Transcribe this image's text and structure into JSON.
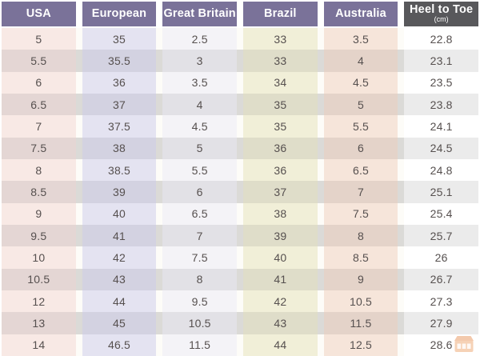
{
  "chart_data": {
    "type": "table",
    "columns": [
      {
        "label": "USA"
      },
      {
        "label": "European"
      },
      {
        "label": "Great Britain"
      },
      {
        "label": "Brazil"
      },
      {
        "label": "Australia"
      },
      {
        "label": "Heel to Toe",
        "sublabel": "(cm)"
      }
    ],
    "rows": [
      [
        "5",
        "35",
        "2.5",
        "33",
        "3.5",
        "22.8"
      ],
      [
        "5.5",
        "35.5",
        "3",
        "33",
        "4",
        "23.1"
      ],
      [
        "6",
        "36",
        "3.5",
        "34",
        "4.5",
        "23.5"
      ],
      [
        "6.5",
        "37",
        "4",
        "35",
        "5",
        "23.8"
      ],
      [
        "7",
        "37.5",
        "4.5",
        "35",
        "5.5",
        "24.1"
      ],
      [
        "7.5",
        "38",
        "5",
        "36",
        "6",
        "24.5"
      ],
      [
        "8",
        "38.5",
        "5.5",
        "36",
        "6.5",
        "24.8"
      ],
      [
        "8.5",
        "39",
        "6",
        "37",
        "7",
        "25.1"
      ],
      [
        "9",
        "40",
        "6.5",
        "38",
        "7.5",
        "25.4"
      ],
      [
        "9.5",
        "41",
        "7",
        "39",
        "8",
        "25.7"
      ],
      [
        "10",
        "42",
        "7.5",
        "40",
        "8.5",
        "26"
      ],
      [
        "10.5",
        "43",
        "8",
        "41",
        "9",
        "26.7"
      ],
      [
        "12",
        "44",
        "9.5",
        "42",
        "10.5",
        "27.3"
      ],
      [
        "13",
        "45",
        "10.5",
        "43",
        "11.5",
        "27.9"
      ],
      [
        "14",
        "46.5",
        "11.5",
        "44",
        "12.5",
        "28.6"
      ]
    ]
  },
  "style": {
    "header_text_color": "#ffffff",
    "body_text_color": "#56504f",
    "row_gap_bg": "#fdfcf8",
    "row_gap_bg_alt": "#dbdad7",
    "columns": [
      {
        "header_bg": "#7a7299",
        "bg": "#f8e9e5",
        "bg_alt": "#e4d6d4"
      },
      {
        "header_bg": "#7a7299",
        "bg": "#e4e3f1",
        "bg_alt": "#d3d2e1"
      },
      {
        "header_bg": "#7a7299",
        "bg": "#f4f3f7",
        "bg_alt": "#e2e1e6"
      },
      {
        "header_bg": "#7a7299",
        "bg": "#f1efd8",
        "bg_alt": "#dfddc9"
      },
      {
        "header_bg": "#7a7299",
        "bg": "#f6e5da",
        "bg_alt": "#e4d3c9"
      },
      {
        "header_bg": "#58585b",
        "bg": "#ffffff",
        "bg_alt": "#ebebeb"
      }
    ],
    "watermark_color": "#ed9d5f",
    "watermark_color_dark": "#e5884a"
  }
}
